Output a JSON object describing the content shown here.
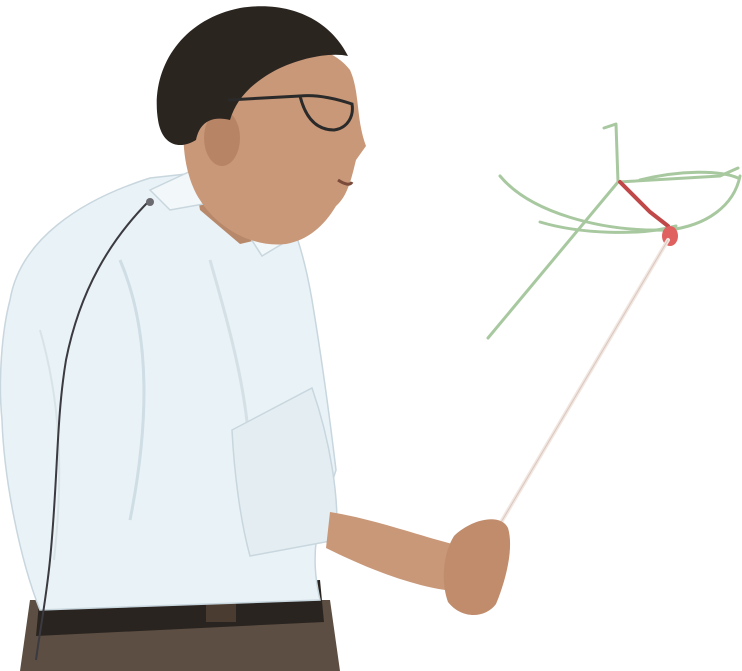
{
  "scene": {
    "background_color": "#ffffff",
    "subject": "lecturer-with-pointer",
    "drawing_color": "#a8c8a0",
    "highlight_color": "#c04848",
    "shirt_color": "#e9f2f6",
    "hair_color": "#2b2520",
    "skin_color": "#c99878",
    "pointer_color": "#f2e6e0",
    "belt_color": "#2a2420"
  }
}
